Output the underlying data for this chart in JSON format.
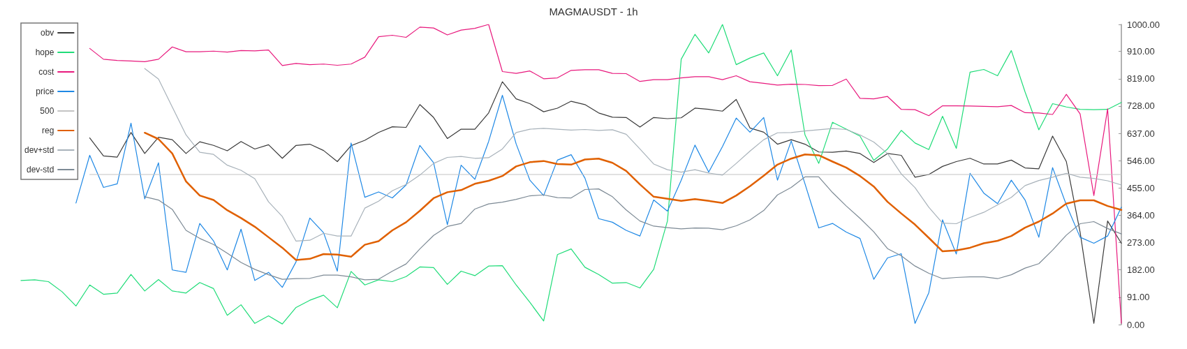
{
  "chart_data": {
    "type": "line",
    "title": "MAGMAUSDT - 1h",
    "categories": [
      null,
      null,
      null,
      null,
      null,
      null,
      null,
      null,
      null,
      null,
      null,
      null,
      null,
      null,
      null,
      null,
      null,
      null,
      null,
      null,
      null,
      null,
      null,
      null,
      null,
      null,
      null,
      null,
      null,
      null,
      null,
      null,
      null,
      null,
      null,
      null,
      null,
      null,
      null,
      null,
      null,
      null,
      null,
      null,
      null,
      null,
      null,
      null,
      null,
      null,
      null,
      null,
      null,
      null,
      null,
      null,
      null,
      null,
      null,
      null,
      null,
      null,
      null,
      null,
      null,
      null,
      null,
      null,
      null,
      null,
      null,
      null,
      null,
      null,
      null,
      null,
      null,
      null,
      null,
      null,
      null
    ],
    "ylim": [
      0,
      1000
    ],
    "yticks": [
      {
        "value": 0,
        "label": "0.00"
      },
      {
        "value": 91,
        "label": "91.00"
      },
      {
        "value": 182,
        "label": "182.00"
      },
      {
        "value": 273,
        "label": "273.00"
      },
      {
        "value": 364,
        "label": "364.00"
      },
      {
        "value": 455,
        "label": "455.00"
      },
      {
        "value": 546,
        "label": "546.00"
      },
      {
        "value": 637,
        "label": "637.00"
      },
      {
        "value": 728,
        "label": "728.00"
      },
      {
        "value": 819,
        "label": "819.00"
      },
      {
        "value": 910,
        "label": "910.00"
      },
      {
        "value": 1000,
        "label": "1000.00"
      }
    ],
    "grid": false,
    "legend": "top left",
    "marker": "none",
    "line_style": "solid",
    "series": [
      {
        "name": "obv",
        "color": "#3a3a3a",
        "values": [
          null,
          null,
          null,
          null,
          null,
          622,
          562,
          558,
          640,
          570,
          624,
          616,
          570,
          609,
          597,
          579,
          610,
          585,
          599,
          554,
          597,
          601,
          580,
          543,
          596,
          614,
          640,
          659,
          657,
          733,
          690,
          620,
          651,
          651,
          705,
          809,
          752,
          736,
          709,
          721,
          744,
          733,
          705,
          691,
          690,
          658,
          690,
          686,
          689,
          721,
          717,
          711,
          750,
          655,
          641,
          601,
          616,
          601,
          575,
          574,
          578,
          570,
          540,
          570,
          564,
          491,
          500,
          527,
          543,
          554,
          535,
          535,
          548,
          522,
          519,
          628,
          543,
          308,
          4,
          345,
          271
        ]
      },
      {
        "name": "hope",
        "color": "#1fdc78",
        "values": [
          147,
          149,
          143,
          109,
          62,
          132,
          101,
          105,
          167,
          112,
          150,
          112,
          105,
          140,
          120,
          31,
          66,
          4,
          29,
          2,
          57,
          81,
          98,
          56,
          177,
          132,
          149,
          143,
          160,
          192,
          190,
          134,
          178,
          163,
          195,
          196,
          132,
          74,
          12,
          233,
          252,
          191,
          167,
          138,
          140,
          122,
          184,
          345,
          884,
          967,
          905,
          1000,
          866,
          888,
          905,
          829,
          915,
          632,
          537,
          674,
          651,
          628,
          547,
          585,
          647,
          605,
          583,
          694,
          587,
          841,
          850,
          829,
          913,
          775,
          649,
          736,
          725,
          717,
          716,
          717,
          740
        ]
      },
      {
        "name": "cost",
        "color": "#e8197d",
        "values": [
          null,
          null,
          null,
          null,
          null,
          920,
          884,
          880,
          878,
          876,
          884,
          925,
          909,
          909,
          911,
          908,
          913,
          912,
          915,
          863,
          870,
          866,
          868,
          864,
          868,
          891,
          959,
          964,
          957,
          991,
          988,
          965,
          981,
          987,
          1000,
          843,
          837,
          845,
          819,
          822,
          847,
          849,
          849,
          837,
          836,
          810,
          816,
          816,
          822,
          826,
          826,
          816,
          829,
          809,
          804,
          798,
          801,
          800,
          796,
          797,
          818,
          754,
          752,
          760,
          717,
          716,
          696,
          729,
          729,
          728,
          727,
          726,
          730,
          706,
          705,
          700,
          767,
          702,
          430,
          719,
          5
        ]
      },
      {
        "name": "price",
        "color": "#1e88e5",
        "values": [
          null,
          null,
          null,
          null,
          405,
          564,
          457,
          469,
          671,
          419,
          539,
          182,
          174,
          337,
          279,
          182,
          318,
          147,
          174,
          124,
          209,
          355,
          306,
          178,
          605,
          424,
          442,
          422,
          465,
          597,
          539,
          333,
          531,
          484,
          610,
          764,
          602,
          481,
          430,
          548,
          566,
          488,
          353,
          341,
          314,
          295,
          415,
          378,
          481,
          598,
          508,
          593,
          688,
          641,
          690,
          481,
          612,
          469,
          322,
          337,
          308,
          287,
          151,
          222,
          236,
          4,
          106,
          349,
          235,
          504,
          438,
          403,
          481,
          415,
          291,
          523,
          399,
          291,
          271,
          295,
          391
        ]
      },
      {
        "name": "500",
        "color": "#c4c4c4",
        "values": [
          null,
          null,
          null,
          null,
          null,
          500,
          500,
          500,
          500,
          500,
          500,
          500,
          500,
          500,
          500,
          500,
          500,
          500,
          500,
          500,
          500,
          500,
          500,
          500,
          500,
          500,
          500,
          500,
          500,
          500,
          500,
          500,
          500,
          500,
          500,
          500,
          500,
          500,
          500,
          500,
          500,
          500,
          500,
          500,
          500,
          500,
          500,
          500,
          500,
          500,
          500,
          500,
          500,
          500,
          500,
          500,
          500,
          500,
          500,
          500,
          500,
          500,
          500,
          500,
          500,
          500,
          500,
          500,
          500,
          500,
          500,
          500,
          500,
          500,
          500,
          500,
          500,
          500,
          500,
          500,
          500
        ]
      },
      {
        "name": "reg",
        "color": "#e06000",
        "values": [
          null,
          null,
          null,
          null,
          null,
          null,
          null,
          null,
          null,
          639,
          618,
          570,
          477,
          430,
          415,
          381,
          355,
          326,
          291,
          256,
          215,
          219,
          235,
          233,
          226,
          266,
          278,
          314,
          341,
          379,
          421,
          441,
          448,
          469,
          479,
          495,
          527,
          541,
          545,
          535,
          533,
          550,
          553,
          539,
          512,
          467,
          426,
          419,
          412,
          418,
          412,
          405,
          430,
          461,
          496,
          533,
          553,
          567,
          564,
          543,
          523,
          495,
          460,
          409,
          370,
          333,
          289,
          244,
          247,
          256,
          271,
          279,
          295,
          323,
          343,
          370,
          403,
          414,
          414,
          395,
          382
        ]
      },
      {
        "name": "dev+std",
        "color": "#a8b2ba",
        "values": [
          null,
          null,
          null,
          null,
          null,
          null,
          null,
          null,
          null,
          853,
          818,
          725,
          632,
          574,
          567,
          531,
          514,
          486,
          409,
          360,
          278,
          281,
          304,
          295,
          295,
          388,
          411,
          446,
          467,
          498,
          537,
          557,
          560,
          554,
          556,
          585,
          640,
          651,
          654,
          651,
          648,
          650,
          647,
          649,
          634,
          585,
          535,
          516,
          508,
          516,
          505,
          498,
          537,
          578,
          616,
          639,
          640,
          645,
          649,
          653,
          650,
          632,
          608,
          570,
          502,
          456,
          391,
          338,
          336,
          357,
          374,
          399,
          424,
          463,
          480,
          491,
          504,
          491,
          487,
          479,
          465
        ]
      },
      {
        "name": "dev-std",
        "color": "#7d8a95",
        "values": [
          null,
          null,
          null,
          null,
          null,
          null,
          null,
          null,
          null,
          426,
          415,
          384,
          314,
          287,
          267,
          238,
          207,
          184,
          166,
          151,
          153,
          154,
          165,
          165,
          159,
          149,
          151,
          178,
          202,
          252,
          297,
          327,
          337,
          385,
          402,
          408,
          417,
          429,
          432,
          423,
          422,
          450,
          452,
          426,
          382,
          345,
          328,
          323,
          319,
          322,
          321,
          316,
          329,
          349,
          380,
          432,
          457,
          492,
          492,
          440,
          395,
          354,
          309,
          253,
          229,
          195,
          171,
          153,
          157,
          159,
          159,
          153,
          166,
          188,
          203,
          248,
          298,
          336,
          343,
          320,
          302
        ]
      }
    ]
  }
}
